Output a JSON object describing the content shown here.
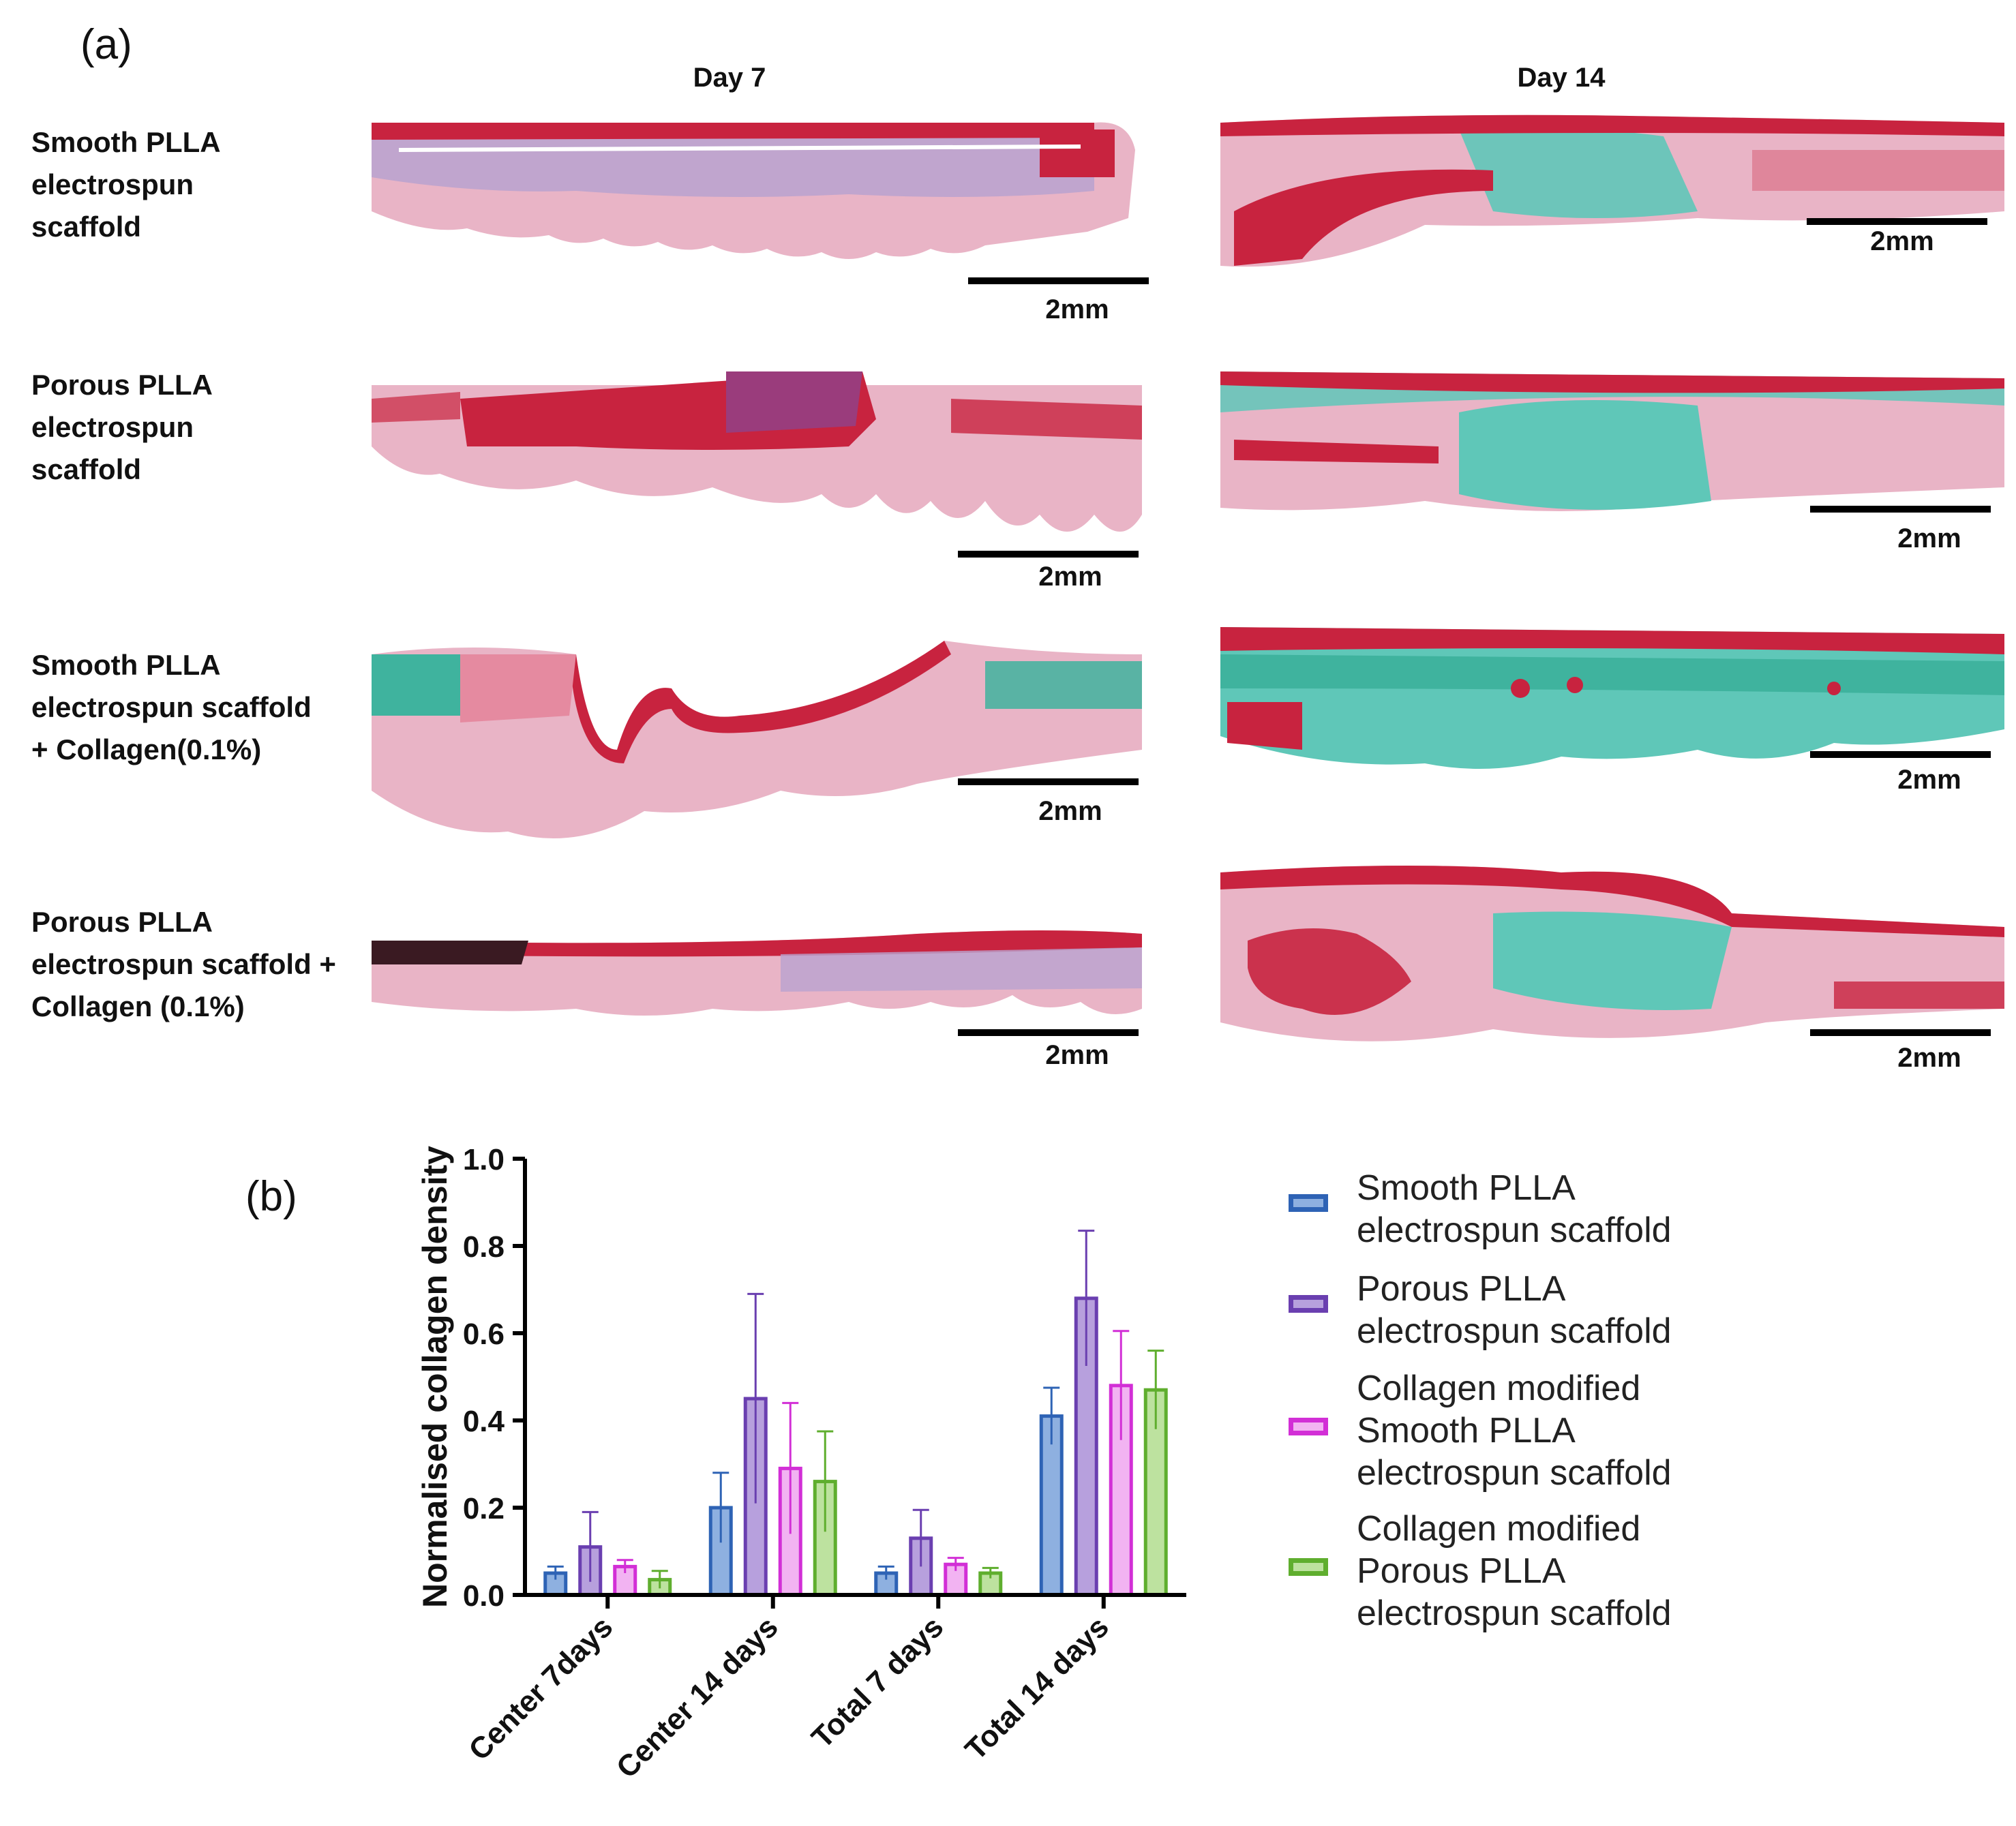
{
  "panel_a": {
    "label": "(a)",
    "columns": [
      "Day 7",
      "Day 14"
    ],
    "rows": [
      {
        "lines": [
          "Smooth PLLA",
          "electrospun",
          "scaffold"
        ]
      },
      {
        "lines": [
          "Porous PLLA",
          "electrospun",
          "scaffold"
        ]
      },
      {
        "lines": [
          "Smooth PLLA",
          "electrospun scaffold",
          "+ Collagen(0.1%)"
        ]
      },
      {
        "lines": [
          "Porous PLLA",
          "electrospun scaffold +",
          "Collagen (0.1%)"
        ]
      }
    ],
    "scale_label": "2mm",
    "colors": {
      "tissue_red": "#c8233f",
      "tissue_pink": "#e9b4c6",
      "tissue_cyan": "#5fc7b8",
      "tissue_lavender": "#b9a2cf"
    }
  },
  "panel_b": {
    "label": "(b)"
  },
  "chart_data": {
    "type": "bar",
    "ylabel": "Normalised collagen density",
    "ylim": [
      0,
      1.0
    ],
    "yticks": [
      "0.0",
      "0.2",
      "0.4",
      "0.6",
      "0.8",
      "1.0"
    ],
    "categories": [
      "Center 7days",
      "Center 14 days",
      "Total 7 days",
      "Total 14 days"
    ],
    "series": [
      {
        "name": "Smooth PLLA electrospun scaffold",
        "legend_lines": [
          "Smooth PLLA",
          "electrospun scaffold"
        ],
        "color": "#2e63b5",
        "fill": "#8eb0e0",
        "values": [
          0.05,
          0.2,
          0.05,
          0.41
        ],
        "errors": [
          0.015,
          0.08,
          0.015,
          0.065
        ]
      },
      {
        "name": "Porous PLLA electrospun scaffold",
        "legend_lines": [
          "Porous PLLA",
          "electrospun scaffold"
        ],
        "color": "#6a3fb0",
        "fill": "#b7a0dd",
        "values": [
          0.11,
          0.45,
          0.13,
          0.68
        ],
        "errors": [
          0.08,
          0.24,
          0.065,
          0.155
        ]
      },
      {
        "name": "Collagen modified Smooth PLLA electrospun scaffold",
        "legend_lines": [
          "Collagen modified",
          "Smooth PLLA",
          "electrospun scaffold"
        ],
        "color": "#d22fd6",
        "fill": "#f2b3f2",
        "values": [
          0.065,
          0.29,
          0.07,
          0.48
        ],
        "errors": [
          0.015,
          0.15,
          0.015,
          0.125
        ]
      },
      {
        "name": "Collagen modified Porous PLLA electrospun scaffold",
        "legend_lines": [
          "Collagen modified",
          "Porous PLLA",
          "electrospun scaffold"
        ],
        "color": "#5fae2e",
        "fill": "#bde29f",
        "values": [
          0.035,
          0.26,
          0.05,
          0.47
        ],
        "errors": [
          0.02,
          0.115,
          0.012,
          0.09
        ]
      }
    ]
  }
}
